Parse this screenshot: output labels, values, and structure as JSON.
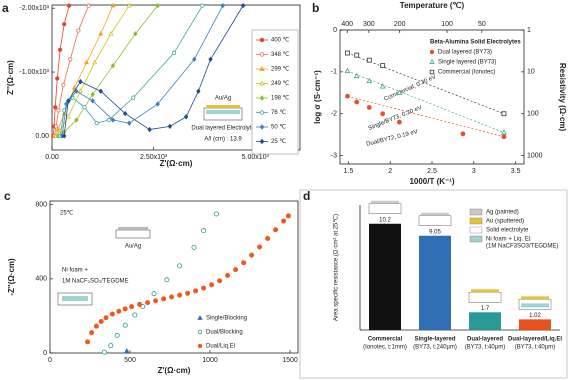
{
  "chart_data": [
    {
      "type": "line",
      "panel_label": "a",
      "x_label": "Z'(Ω·cm)",
      "y_label": "Z''(Ω·cm)",
      "xlim": [
        0,
        6100
      ],
      "ylim": [
        220,
        -2050
      ],
      "xticks": [
        {
          "value": 0,
          "label": "0.00"
        },
        {
          "value": 2500,
          "label": "2.50x10³"
        },
        {
          "value": 5000,
          "label": "5.00x10³"
        }
      ],
      "yticks": [
        {
          "value": 0,
          "label": "0.00"
        },
        {
          "value": -1000,
          "label": "-1.00x10³"
        },
        {
          "value": -2000,
          "label": "-2.00x10³"
        }
      ],
      "annotations": [
        "Au/Ag",
        "Dual layered Electrolyte",
        "A/l (cm) : 13.9"
      ],
      "series": [
        {
          "name": "400 ℃",
          "color": "#e8402a",
          "marker": "circle",
          "filled": true,
          "x": [
            30,
            50,
            80,
            130,
            200,
            300,
            420
          ],
          "values": [
            0,
            -150,
            -450,
            -900,
            -1350,
            -1750,
            -2040
          ]
        },
        {
          "name": "348 ℃",
          "color": "#ee6a4c",
          "marker": "circle",
          "filled": false,
          "x": [
            60,
            100,
            160,
            280,
            450,
            650,
            900
          ],
          "values": [
            0,
            -150,
            -400,
            -800,
            -1200,
            -1650,
            -2040
          ]
        },
        {
          "name": "299 ℃",
          "color": "#f2a324",
          "marker": "triangle",
          "filled": true,
          "x": [
            80,
            150,
            300,
            550,
            850,
            1200,
            1500
          ],
          "values": [
            0,
            -100,
            -350,
            -750,
            -1150,
            -1600,
            -2040
          ]
        },
        {
          "name": "249 ℃",
          "color": "#d2c21c",
          "marker": "triangle",
          "filled": false,
          "x": [
            100,
            200,
            400,
            700,
            1050,
            1450,
            1900
          ],
          "values": [
            0,
            -80,
            -300,
            -700,
            -1150,
            -1600,
            -2040
          ]
        },
        {
          "name": "198 ℃",
          "color": "#8cbf2e",
          "marker": "diamond",
          "filled": true,
          "x": [
            150,
            300,
            600,
            1000,
            1500,
            2050,
            2600
          ],
          "values": [
            0,
            -60,
            -250,
            -650,
            -1100,
            -1600,
            -2040
          ]
        },
        {
          "name": "76 ℃",
          "color": "#3aa6a0",
          "marker": "circle",
          "filled": false,
          "x": [
            200,
            300,
            500,
            800,
            1100,
            1400,
            2000,
            3000,
            3700
          ],
          "values": [
            0,
            -400,
            -600,
            -450,
            -200,
            -250,
            -600,
            -1300,
            -2040
          ]
        },
        {
          "name": "50 ℃",
          "color": "#3c7fc4",
          "marker": "diamond",
          "filled": true,
          "x": [
            250,
            350,
            600,
            1000,
            1500,
            1900,
            2600,
            3500,
            4200
          ],
          "values": [
            0,
            -500,
            -700,
            -550,
            -250,
            -200,
            -500,
            -1200,
            -2040
          ]
        },
        {
          "name": "25 ℃",
          "color": "#1f4e8c",
          "marker": "diamond",
          "filled": true,
          "x": [
            300,
            400,
            700,
            1200,
            1800,
            2400,
            2900,
            3300,
            3600,
            3900,
            4700
          ],
          "values": [
            0,
            -550,
            -850,
            -700,
            -350,
            -100,
            -150,
            -300,
            -700,
            -1200,
            -2040
          ]
        }
      ]
    },
    {
      "type": "scatter",
      "panel_label": "b",
      "x_label": "1000/T (K⁻¹)",
      "y_label": "log σ (S·cm⁻¹)",
      "x2_label": "Temperature (℃)",
      "y2_label": "Resistivity (Ω·cm)",
      "xlim": [
        1.4,
        3.6
      ],
      "ylim": [
        -3.2,
        0
      ],
      "y2lim": [
        1584.89,
        1
      ],
      "y2log": true,
      "xticks": [
        1.5,
        2.0,
        2.5,
        3.0,
        3.5
      ],
      "yticks": [
        -3,
        -2,
        -1,
        0
      ],
      "x2ticks": [
        {
          "value": 1.486,
          "label": "400"
        },
        {
          "value": 1.745,
          "label": "300"
        },
        {
          "value": 2.114,
          "label": "200"
        },
        {
          "value": 2.68,
          "label": "100"
        },
        {
          "value": 3.096,
          "label": "50"
        }
      ],
      "y2ticks": [
        1,
        10,
        100,
        1000
      ],
      "legend_title": "Beta-Alumina Solid Electrolytes",
      "annotations": [
        "Commercial, 0.30 eV",
        "Single/BY73, 0.20 eV",
        "Dual/BY72, 0.19 eV"
      ],
      "series": [
        {
          "name": "Dual layered (BY73)",
          "color": "#e8502a",
          "marker": "circle",
          "filled": true,
          "x": [
            1.49,
            1.6,
            1.75,
            1.91,
            2.11,
            2.87,
            3.36
          ],
          "values": [
            -1.58,
            -1.72,
            -1.85,
            -2.0,
            -2.2,
            -2.48,
            -2.55
          ]
        },
        {
          "name": "Single layered (BY73)",
          "color": "#3aa68a",
          "marker": "triangle",
          "filled": false,
          "x": [
            1.49,
            1.6,
            1.75,
            1.91,
            2.11,
            3.36
          ],
          "values": [
            -0.98,
            -1.1,
            -1.22,
            -1.35,
            -1.5,
            -2.45
          ]
        },
        {
          "name": "Commercial (Ionotec)",
          "color": "#333333",
          "marker": "square",
          "filled": false,
          "x": [
            1.49,
            1.6,
            1.75,
            1.91,
            3.36
          ],
          "values": [
            -0.55,
            -0.6,
            -0.72,
            -0.85,
            -2.0
          ]
        }
      ]
    },
    {
      "type": "scatter",
      "panel_label": "c",
      "x_label": "Z'(Ω·cm)",
      "y_label": "-Z''(Ω·cm)",
      "xlim": [
        0,
        1550
      ],
      "ylim": [
        0,
        820
      ],
      "xticks": [
        0,
        500,
        1000,
        1500
      ],
      "yticks": [
        0,
        400,
        800
      ],
      "annotations": [
        "25℃",
        "Au/Ag",
        "Ni foam +",
        "1M NaCF₃SO₃/TEGDME"
      ],
      "series": [
        {
          "name": "Single/Blocking",
          "color": "#2f6db5",
          "marker": "triangle",
          "filled": true,
          "x": [
            480
          ],
          "values": [
            8
          ]
        },
        {
          "name": "Dual/Blocking",
          "color": "#2a9a98",
          "marker": "circle",
          "filled": false,
          "x": [
            340,
            380,
            420,
            470,
            530,
            580,
            650,
            730,
            810,
            900,
            960,
            1040
          ],
          "values": [
            5,
            40,
            95,
            150,
            205,
            250,
            320,
            395,
            470,
            570,
            660,
            750
          ]
        },
        {
          "name": "Dual/Liq.El",
          "color": "#ee5a1e",
          "marker": "circle",
          "filled": true,
          "x": [
            235,
            260,
            290,
            320,
            350,
            390,
            430,
            470,
            510,
            560,
            610,
            660,
            710,
            760,
            810,
            860,
            910,
            960,
            1010,
            1060,
            1110,
            1160,
            1210,
            1260,
            1310,
            1360,
            1410,
            1460,
            1490
          ],
          "values": [
            60,
            110,
            145,
            170,
            190,
            210,
            225,
            238,
            250,
            262,
            272,
            282,
            292,
            302,
            312,
            322,
            335,
            350,
            368,
            390,
            418,
            450,
            487,
            528,
            572,
            618,
            665,
            712,
            740
          ]
        }
      ]
    },
    {
      "type": "bar",
      "panel_label": "d",
      "y_label": "Area specific resistance (Ω·cm² at 25℃)",
      "ylim": [
        0,
        12
      ],
      "categories": [
        "Commercial",
        "Single-layered",
        "Dual-layered",
        "Dual-layered/Liq.El"
      ],
      "category_notes": [
        "(Ionotec, t:1mm)",
        "(BY73, t:240µm)",
        "(BY73, t:40µm)",
        "(BY73, t:40µm)"
      ],
      "values": [
        10.2,
        9.05,
        1.7,
        1.02
      ],
      "colors": [
        "#111111",
        "#2f6db5",
        "#2a9a98",
        "#e8501e"
      ],
      "legend_items": [
        "Ag (painted)",
        "Au (sputtered)",
        "Solid electrolyte",
        "Ni foam + Liq. El.",
        "(1M NaCF3SO3/TEGDME)"
      ]
    }
  ]
}
